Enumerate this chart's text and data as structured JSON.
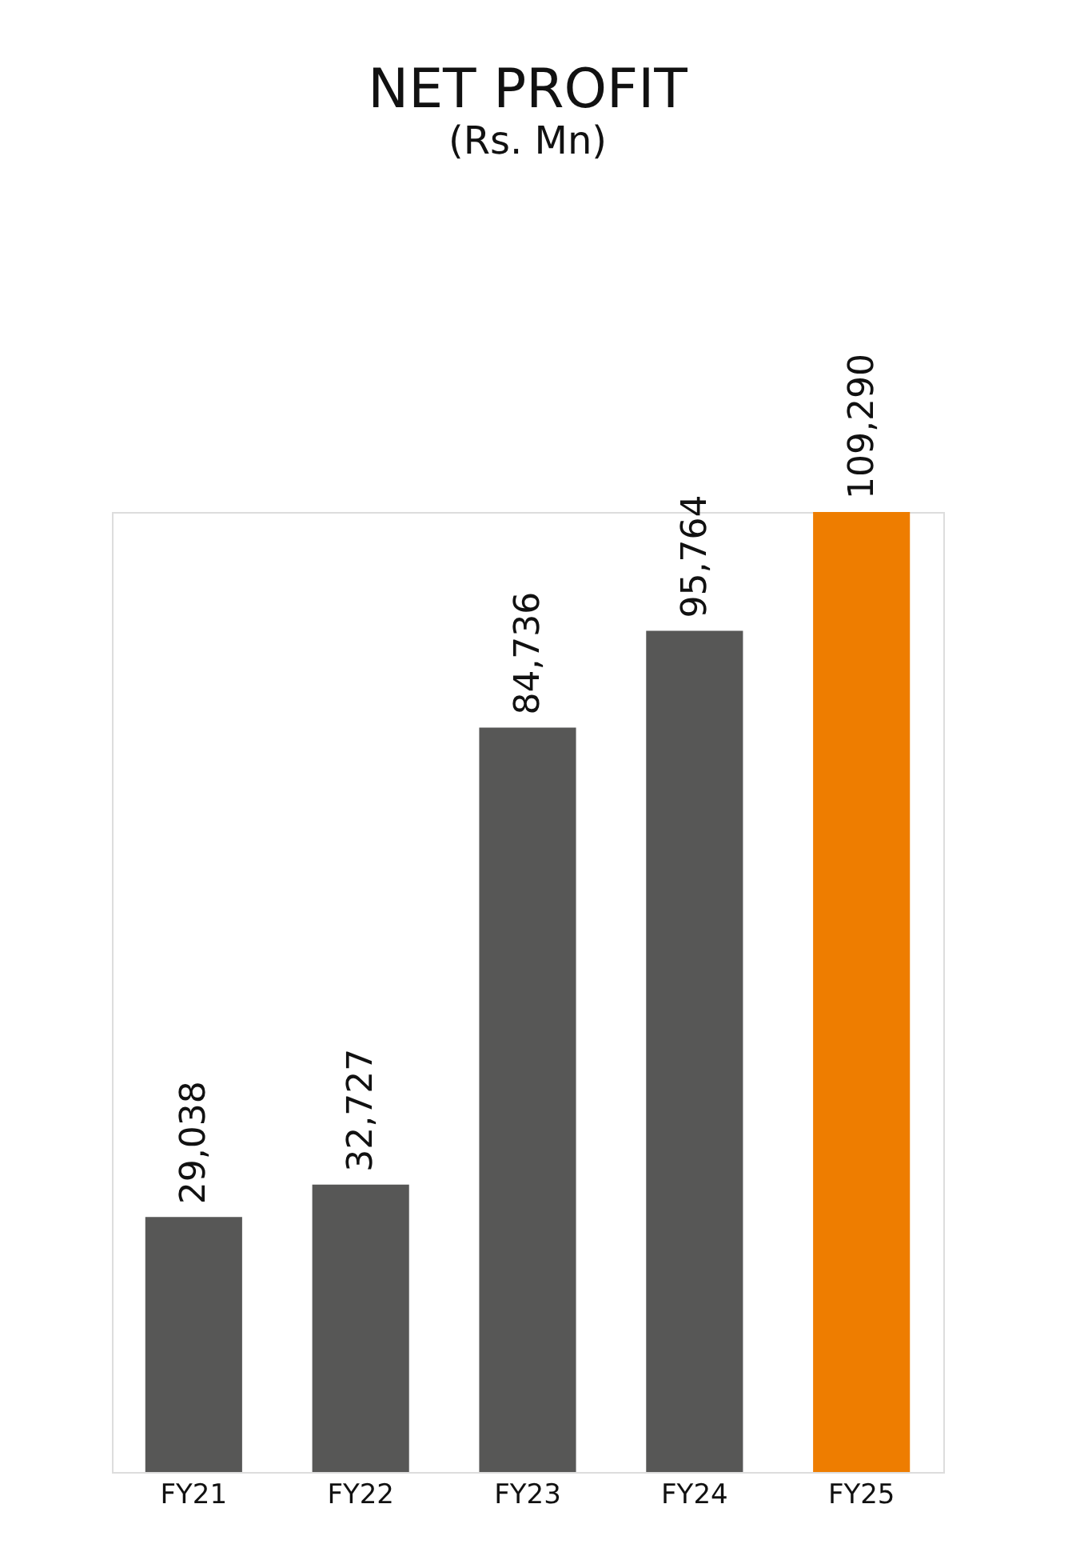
{
  "chart_data": {
    "type": "bar",
    "title": "NET PROFIT",
    "subtitle": "(Rs. Mn)",
    "categories": [
      "FY21",
      "FY22",
      "FY23",
      "FY24",
      "FY25"
    ],
    "values": [
      29038,
      32727,
      84736,
      95764,
      109290
    ],
    "value_labels": [
      "29,038",
      "32,727",
      "84,736",
      "95,764",
      "109,290"
    ],
    "colors": [
      "#575756",
      "#575756",
      "#575756",
      "#575756",
      "#ee7d00"
    ]
  }
}
